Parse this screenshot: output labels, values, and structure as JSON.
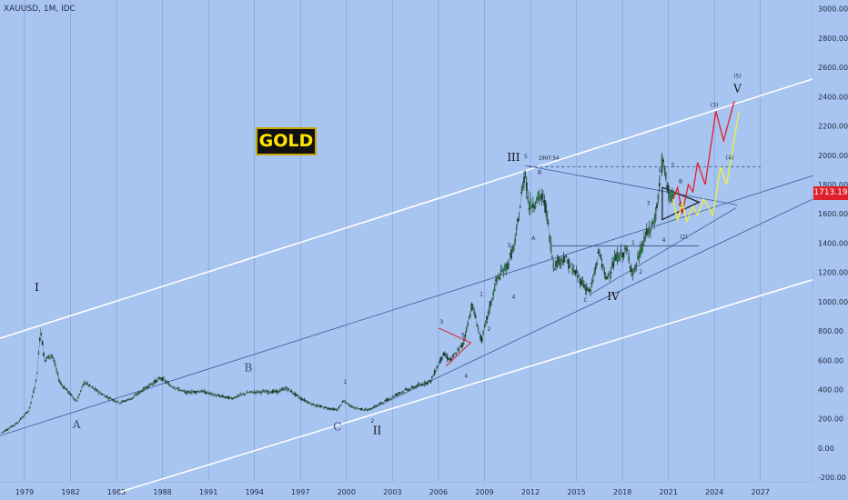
{
  "symbol": "XAUUSD, 1M, IDC",
  "badge": "GOLD",
  "last_price": "1713.19",
  "colors": {
    "background": "#a8c4f0",
    "candle": "#1e5a3a",
    "channel": "#ffffff",
    "red_path": "#e0202a",
    "yellow_path": "#f2f240",
    "trend": "#3b5a9a"
  },
  "chart_data": {
    "type": "candlestick",
    "x_ticks": [
      "1979",
      "1982",
      "1985",
      "1988",
      "1991",
      "1994",
      "1997",
      "2000",
      "2003",
      "2006",
      "2009",
      "2012",
      "2015",
      "2018",
      "2021",
      "2024",
      "2027"
    ],
    "y_ticks": [
      3000,
      2800,
      2600,
      2400,
      2200,
      2000,
      1800,
      1600,
      1400,
      1200,
      1000,
      800,
      600,
      400,
      200,
      0,
      -200
    ],
    "y_tick_labels": [
      "3000.00",
      "2800.00",
      "2600.00",
      "2400.00",
      "2200.00",
      "2000.00",
      "1800.00",
      "1600.00",
      "1400.00",
      "1200.00",
      "1000.00",
      "800.00",
      "600.00",
      "400.00",
      "200.00",
      "0.00",
      "-200.00"
    ],
    "ylim": [
      -230,
      3060
    ],
    "xlim": [
      1977.4,
      2030.4
    ],
    "grid": "vertical",
    "price_path": [
      [
        1977.5,
        105
      ],
      [
        1978.5,
        170
      ],
      [
        1979.3,
        260
      ],
      [
        1979.8,
        480
      ],
      [
        1980.05,
        820
      ],
      [
        1980.3,
        600
      ],
      [
        1980.8,
        640
      ],
      [
        1981.3,
        450
      ],
      [
        1982.4,
        320
      ],
      [
        1982.9,
        450
      ],
      [
        1983.3,
        420
      ],
      [
        1984.2,
        360
      ],
      [
        1985.2,
        310
      ],
      [
        1986.0,
        340
      ],
      [
        1987.0,
        420
      ],
      [
        1987.9,
        480
      ],
      [
        1988.5,
        430
      ],
      [
        1989.5,
        380
      ],
      [
        1990.5,
        390
      ],
      [
        1991.5,
        360
      ],
      [
        1992.5,
        340
      ],
      [
        1993.6,
        380
      ],
      [
        1994.5,
        385
      ],
      [
        1995.5,
        385
      ],
      [
        1996.1,
        410
      ],
      [
        1997.0,
        340
      ],
      [
        1998.0,
        290
      ],
      [
        1999.4,
        260
      ],
      [
        1999.8,
        320
      ],
      [
        2000.5,
        275
      ],
      [
        2001.4,
        260
      ],
      [
        2002.5,
        320
      ],
      [
        2003.5,
        380
      ],
      [
        2004.5,
        420
      ],
      [
        2005.5,
        460
      ],
      [
        2006.3,
        640
      ],
      [
        2006.8,
        600
      ],
      [
        2007.6,
        710
      ],
      [
        2008.2,
        980
      ],
      [
        2008.8,
        730
      ],
      [
        2009.8,
        1150
      ],
      [
        2010.5,
        1250
      ],
      [
        2011.0,
        1400
      ],
      [
        2011.65,
        1900
      ],
      [
        2011.9,
        1650
      ],
      [
        2012.7,
        1720
      ],
      [
        2013.0,
        1650
      ],
      [
        2013.5,
        1250
      ],
      [
        2014.2,
        1300
      ],
      [
        2014.9,
        1200
      ],
      [
        2015.9,
        1060
      ],
      [
        2016.5,
        1350
      ],
      [
        2016.9,
        1150
      ],
      [
        2017.6,
        1300
      ],
      [
        2018.3,
        1350
      ],
      [
        2018.7,
        1180
      ],
      [
        2019.5,
        1450
      ],
      [
        2019.9,
        1500
      ],
      [
        2020.2,
        1600
      ],
      [
        2020.6,
        1970
      ],
      [
        2020.9,
        1800
      ],
      [
        2021.2,
        1700
      ],
      [
        2021.4,
        1713
      ]
    ],
    "red_path": [
      [
        2021.3,
        1700
      ],
      [
        2021.6,
        1780
      ],
      [
        2021.9,
        1600
      ],
      [
        2022.3,
        1800
      ],
      [
        2022.6,
        1750
      ],
      [
        2022.9,
        1950
      ],
      [
        2023.4,
        1800
      ],
      [
        2024.1,
        2300
      ],
      [
        2024.6,
        2100
      ],
      [
        2025.3,
        2370
      ]
    ],
    "yellow_path": [
      [
        2021.3,
        1700
      ],
      [
        2021.6,
        1550
      ],
      [
        2021.9,
        1680
      ],
      [
        2022.2,
        1550
      ],
      [
        2022.6,
        1650
      ],
      [
        2022.9,
        1590
      ],
      [
        2023.3,
        1700
      ],
      [
        2023.9,
        1590
      ],
      [
        2024.4,
        1920
      ],
      [
        2024.8,
        1800
      ],
      [
        2025.6,
        2300
      ]
    ],
    "channel_lines": [
      {
        "from": [
          1977.4,
          750
        ],
        "to": [
          2030.4,
          2520
        ]
      },
      {
        "from": [
          1985.2,
          -300
        ],
        "to": [
          2030.4,
          1150
        ]
      }
    ],
    "trend_lines": [
      {
        "from": [
          1977.4,
          85
        ],
        "to": [
          2030.4,
          1860
        ]
      },
      {
        "from": [
          2001.5,
          260
        ],
        "to": [
          2030.4,
          1700
        ]
      },
      {
        "from": [
          2011.65,
          1930
        ],
        "to": [
          2025.5,
          1660
        ]
      },
      {
        "from": [
          2015.9,
          1050
        ],
        "to": [
          2025.4,
          1640
        ]
      }
    ],
    "dashed_resistance": {
      "y": 1920.7,
      "x_from": 2011.9,
      "x_to": 2027.0
    },
    "horizontal_levels": [
      {
        "y": 1380,
        "x_from": 2013.3,
        "x_to": 2023.0
      }
    ],
    "triangle": [
      [
        2020.6,
        1780
      ],
      [
        2023.0,
        1680
      ],
      [
        2020.6,
        1560
      ]
    ],
    "wave_labels": [
      {
        "text": "I",
        "x": 1979.8,
        "y": 1075,
        "size": "big"
      },
      {
        "text": "A",
        "x": 1982.4,
        "y": 135,
        "size": "big"
      },
      {
        "text": "B",
        "x": 1993.6,
        "y": 525,
        "size": "big"
      },
      {
        "text": "C",
        "x": 1999.4,
        "y": 120,
        "size": "big"
      },
      {
        "text": "II",
        "x": 2002.0,
        "y": 95,
        "size": "big"
      },
      {
        "text": "III",
        "x": 2010.9,
        "y": 1960,
        "size": "big"
      },
      {
        "text": "IV",
        "x": 2017.4,
        "y": 1010,
        "size": "big"
      },
      {
        "text": "V",
        "x": 2025.5,
        "y": 2430,
        "size": "big"
      },
      {
        "text": "1",
        "x": 1999.9,
        "y": 440,
        "size": "small"
      },
      {
        "text": "2",
        "x": 2001.7,
        "y": 175,
        "size": "small"
      },
      {
        "text": "3",
        "x": 2006.2,
        "y": 850,
        "size": "small"
      },
      {
        "text": "4",
        "x": 2007.8,
        "y": 480,
        "size": "small"
      },
      {
        "text": "5",
        "x": 2007.6,
        "y": 760,
        "size": "small"
      },
      {
        "text": "1",
        "x": 2008.8,
        "y": 1040,
        "size": "small"
      },
      {
        "text": "2",
        "x": 2009.3,
        "y": 800,
        "size": "small"
      },
      {
        "text": "3",
        "x": 2010.6,
        "y": 1370,
        "size": "small"
      },
      {
        "text": "4",
        "x": 2010.9,
        "y": 1020,
        "size": "small"
      },
      {
        "text": "5",
        "x": 2011.7,
        "y": 1980,
        "size": "small"
      },
      {
        "text": "A",
        "x": 2012.2,
        "y": 1420,
        "size": "small"
      },
      {
        "text": "B",
        "x": 2012.6,
        "y": 1870,
        "size": "small"
      },
      {
        "text": "C",
        "x": 2015.6,
        "y": 1000,
        "size": "small"
      },
      {
        "text": "1",
        "x": 2018.7,
        "y": 1390,
        "size": "small"
      },
      {
        "text": "2",
        "x": 2019.2,
        "y": 1190,
        "size": "small"
      },
      {
        "text": "3",
        "x": 2019.7,
        "y": 1660,
        "size": "small"
      },
      {
        "text": "4",
        "x": 2020.7,
        "y": 1410,
        "size": "small"
      },
      {
        "text": "5",
        "x": 2021.3,
        "y": 1920,
        "size": "small"
      },
      {
        "text": "B",
        "x": 2021.8,
        "y": 1810,
        "size": "small"
      },
      {
        "text": "C",
        "x": 2021.8,
        "y": 1650,
        "size": "small"
      },
      {
        "text": "(1)",
        "x": 2020.6,
        "y": 1890,
        "size": "small"
      },
      {
        "text": "(2)",
        "x": 2022.0,
        "y": 1430,
        "size": "small"
      },
      {
        "text": "(3)",
        "x": 2024.0,
        "y": 2330,
        "size": "small"
      },
      {
        "text": "(4)",
        "x": 2025.0,
        "y": 1970,
        "size": "small"
      },
      {
        "text": "(5)",
        "x": 2025.5,
        "y": 2530,
        "size": "small"
      }
    ],
    "annotation": {
      "text": "1907.54",
      "x": 2013.2,
      "y": 1970
    }
  }
}
